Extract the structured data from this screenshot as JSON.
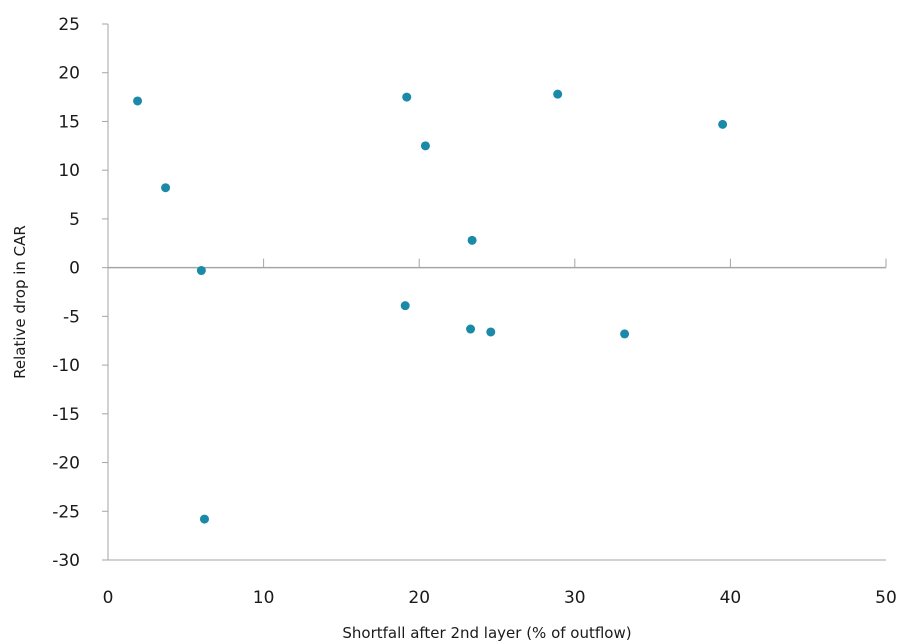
{
  "chart_data": {
    "type": "scatter",
    "title": "",
    "xlabel": "Shortfall after 2nd layer (% of outflow)",
    "ylabel": "Relative drop in CAR",
    "xlim": [
      0,
      50
    ],
    "ylim": [
      -30,
      25
    ],
    "x_ticks": [
      0,
      10,
      20,
      30,
      40,
      50
    ],
    "y_ticks": [
      25,
      20,
      15,
      10,
      5,
      0,
      -5,
      -10,
      -15,
      -20,
      -25,
      -30
    ],
    "grid": false,
    "legend": "none",
    "marker_color": "#1B8AA8",
    "axis_color": "#A6A6A6",
    "points": [
      {
        "x": 1.9,
        "y": 17.1
      },
      {
        "x": 3.7,
        "y": 8.2
      },
      {
        "x": 6.0,
        "y": -0.3
      },
      {
        "x": 6.2,
        "y": -25.8
      },
      {
        "x": 19.1,
        "y": -3.9
      },
      {
        "x": 19.2,
        "y": 17.5
      },
      {
        "x": 20.4,
        "y": 12.5
      },
      {
        "x": 23.3,
        "y": -6.3
      },
      {
        "x": 23.4,
        "y": 2.8
      },
      {
        "x": 24.6,
        "y": -6.6
      },
      {
        "x": 28.9,
        "y": 17.8
      },
      {
        "x": 33.2,
        "y": -6.8
      },
      {
        "x": 39.5,
        "y": 14.7
      }
    ]
  }
}
